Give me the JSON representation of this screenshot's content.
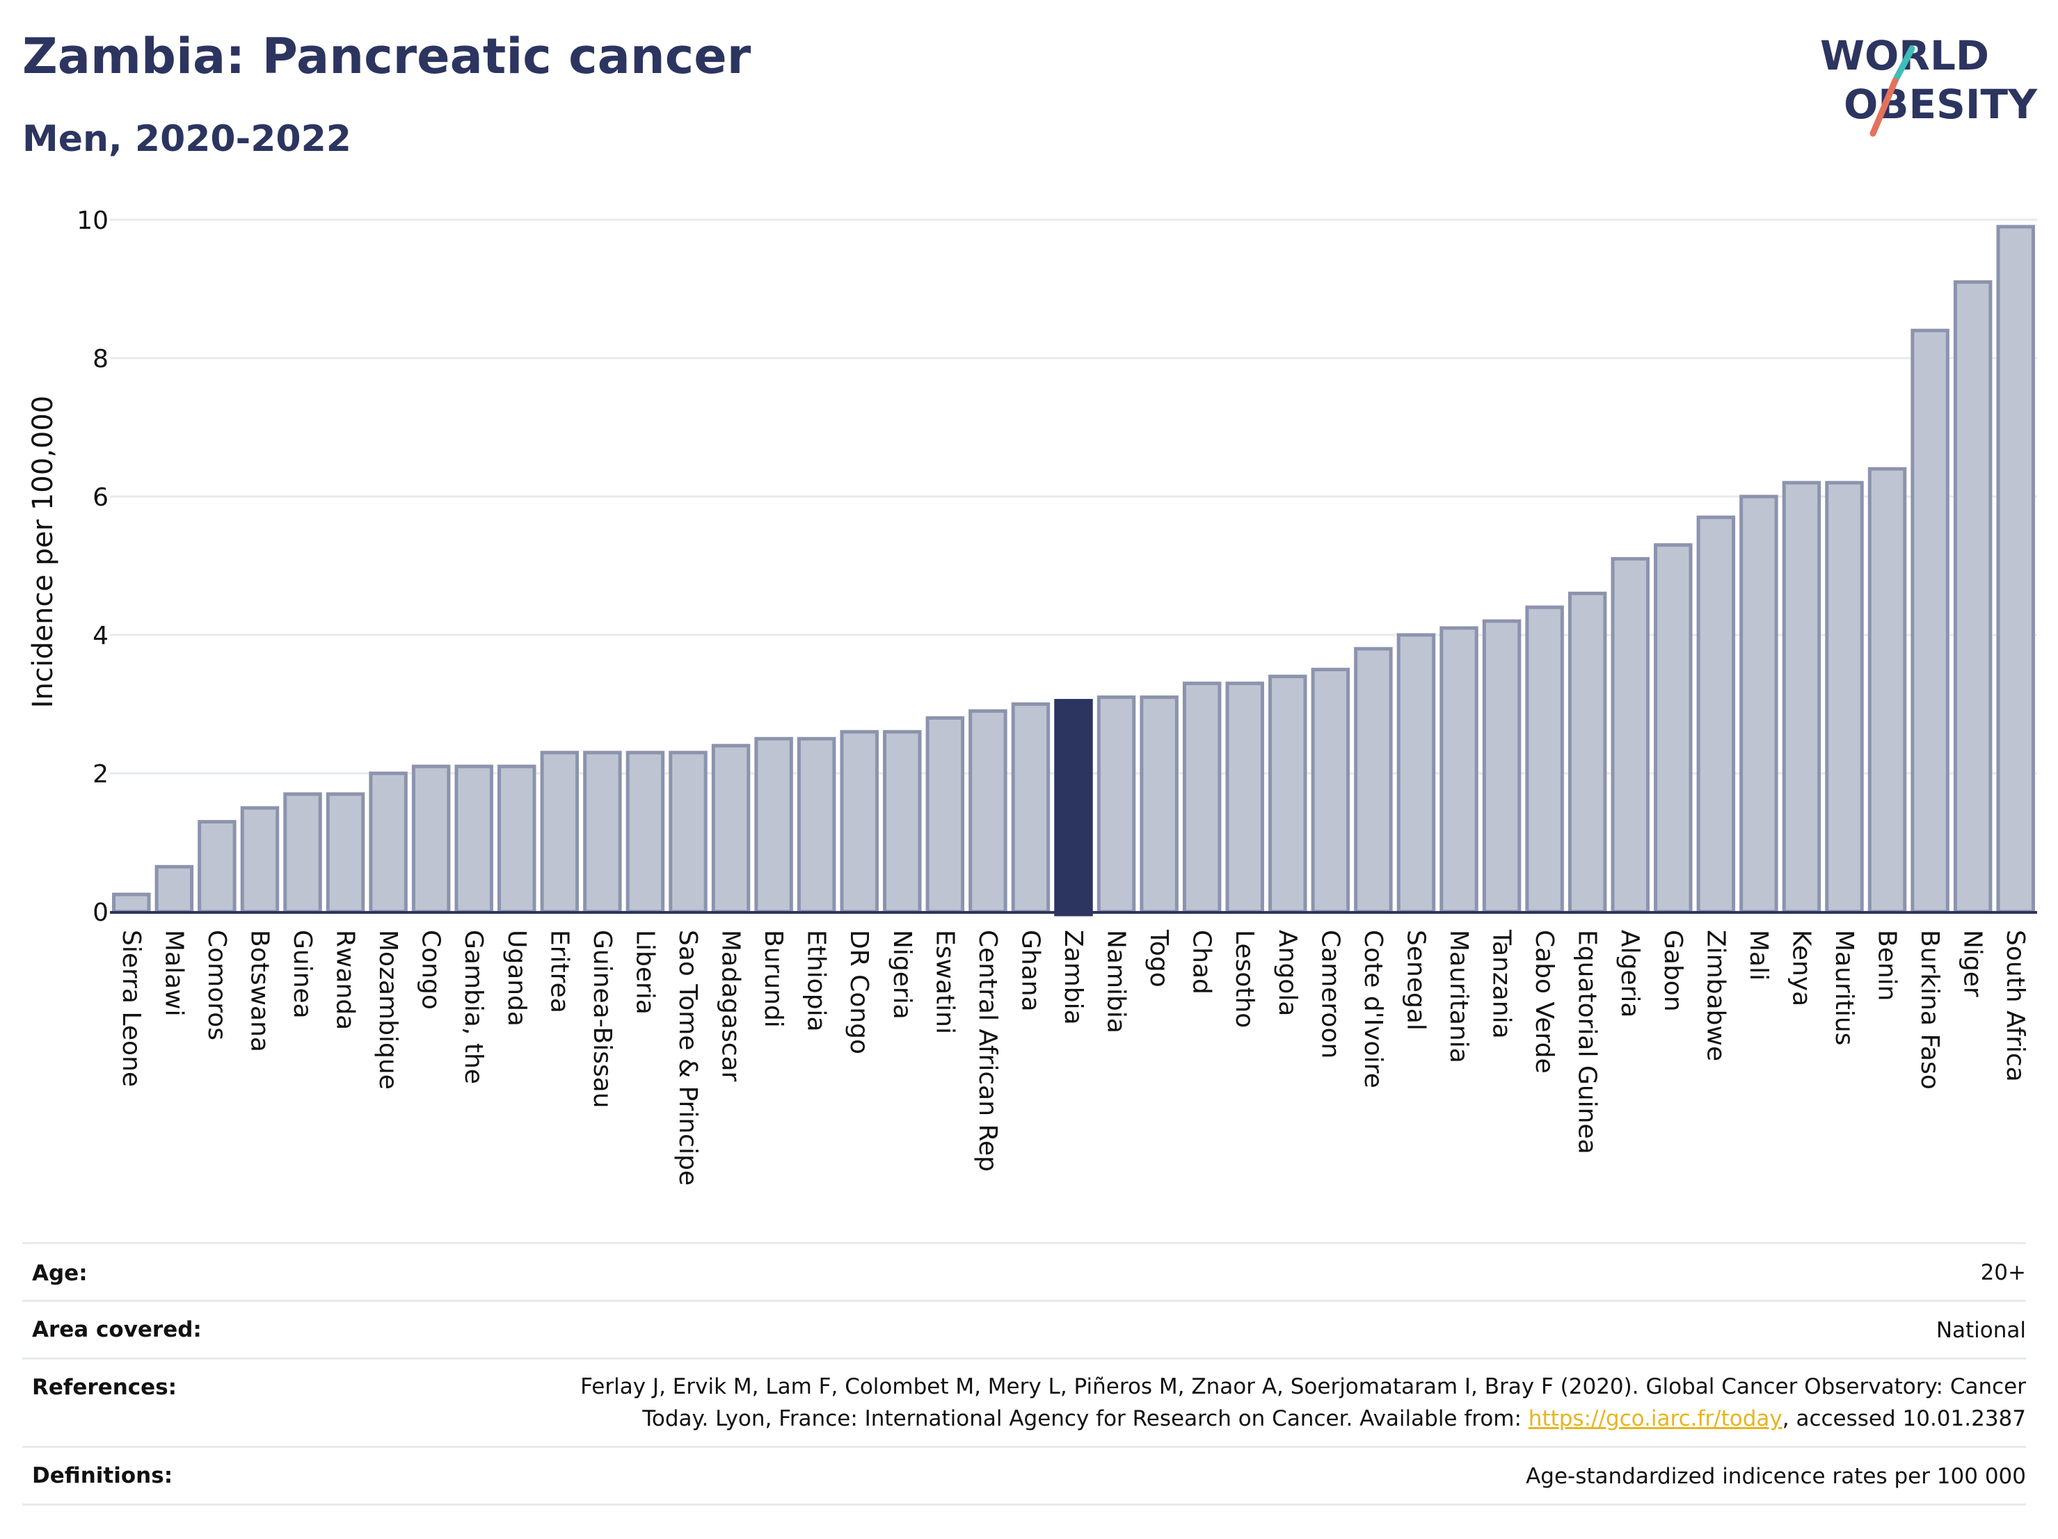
{
  "header": {
    "title": "Zambia: Pancreatic cancer",
    "subtitle": "Men, 2020-2022",
    "logo_line1": "WORLD",
    "logo_line2": "OBESITY"
  },
  "colors": {
    "bar": "#bfc4d2",
    "bar_border": "#8c93ad",
    "highlight": "#2c3560",
    "grid": "#e7e9f0",
    "text": "#2c3560",
    "logo_teal": "#3cbfb8",
    "logo_red": "#e5725b",
    "link": "#e8b422"
  },
  "chart_data": {
    "type": "bar",
    "ylabel": "Incidence per 100,000",
    "ylim": [
      0,
      10
    ],
    "yticks": [
      "0",
      "2",
      "4",
      "6",
      "8",
      "10"
    ],
    "grid": true,
    "highlight_category": "Zambia",
    "categories": [
      "Sierra Leone",
      "Malawi",
      "Comoros",
      "Botswana",
      "Guinea",
      "Rwanda",
      "Mozambique",
      "Congo",
      "Gambia, the",
      "Uganda",
      "Eritrea",
      "Guinea-Bissau",
      "Liberia",
      "Sao Tome & Principe",
      "Madagascar",
      "Burundi",
      "Ethiopia",
      "DR Congo",
      "Nigeria",
      "Eswatini",
      "Central African Rep",
      "Ghana",
      "Zambia",
      "Namibia",
      "Togo",
      "Chad",
      "Lesotho",
      "Angola",
      "Cameroon",
      "Cote d'Ivoire",
      "Senegal",
      "Mauritania",
      "Tanzania",
      "Cabo Verde",
      "Equatorial Guinea",
      "Algeria",
      "Gabon",
      "Zimbabwe",
      "Mali",
      "Kenya",
      "Mauritius",
      "Benin",
      "Burkina Faso",
      "Niger",
      "South Africa"
    ],
    "values": [
      0.25,
      0.65,
      1.3,
      1.5,
      1.7,
      1.7,
      2.0,
      2.1,
      2.1,
      2.1,
      2.3,
      2.3,
      2.3,
      2.3,
      2.4,
      2.5,
      2.5,
      2.6,
      2.6,
      2.8,
      2.9,
      3.0,
      3.05,
      3.1,
      3.1,
      3.3,
      3.3,
      3.4,
      3.5,
      3.8,
      4.0,
      4.1,
      4.2,
      4.4,
      4.6,
      5.1,
      5.3,
      5.7,
      6.0,
      6.2,
      6.2,
      6.4,
      8.4,
      9.1,
      9.9
    ]
  },
  "meta": {
    "age_label": "Age:",
    "age_value": "20+",
    "area_label": "Area covered:",
    "area_value": "National",
    "references_label": "References:",
    "references_line1": "Ferlay J, Ervik M, Lam F, Colombet M, Mery L, Piñeros M, Znaor A, Soerjomataram I, Bray F (2020). Global Cancer Observatory: Cancer",
    "references_line2_pre": "Today. Lyon, France: International Agency for Research on Cancer. Available from: ",
    "references_link": "https://gco.iarc.fr/today",
    "references_line2_post": ", accessed 10.01.2387",
    "definitions_label": "Definitions:",
    "definitions_value": "Age-standardized indicence rates per 100 000"
  }
}
